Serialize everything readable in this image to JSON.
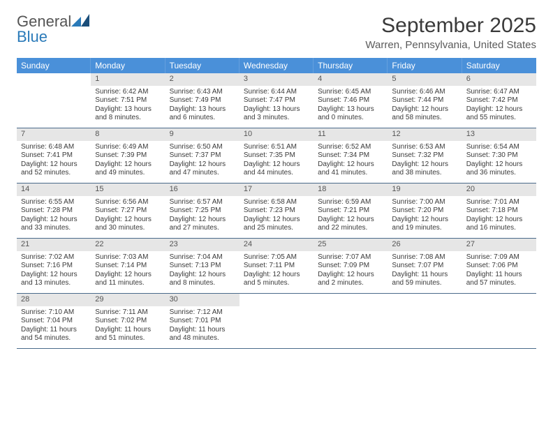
{
  "brand": {
    "name_a": "General",
    "name_b": "Blue"
  },
  "title": "September 2025",
  "location": "Warren, Pennsylvania, United States",
  "colors": {
    "header_bg": "#4a90d9",
    "date_bar_bg": "#e6e6e6",
    "row_border": "#4a6a8a",
    "brand_blue": "#2a7ab9",
    "text": "#3a3a3a"
  },
  "fonts": {
    "title_size": 30,
    "location_size": 15,
    "dow_size": 12,
    "cell_size": 10
  },
  "days_of_week": [
    "Sunday",
    "Monday",
    "Tuesday",
    "Wednesday",
    "Thursday",
    "Friday",
    "Saturday"
  ],
  "weeks": [
    [
      {
        "date": "",
        "sunrise": "",
        "sunset": "",
        "daylight": ""
      },
      {
        "date": "1",
        "sunrise": "Sunrise: 6:42 AM",
        "sunset": "Sunset: 7:51 PM",
        "daylight": "Daylight: 13 hours and 8 minutes."
      },
      {
        "date": "2",
        "sunrise": "Sunrise: 6:43 AM",
        "sunset": "Sunset: 7:49 PM",
        "daylight": "Daylight: 13 hours and 6 minutes."
      },
      {
        "date": "3",
        "sunrise": "Sunrise: 6:44 AM",
        "sunset": "Sunset: 7:47 PM",
        "daylight": "Daylight: 13 hours and 3 minutes."
      },
      {
        "date": "4",
        "sunrise": "Sunrise: 6:45 AM",
        "sunset": "Sunset: 7:46 PM",
        "daylight": "Daylight: 13 hours and 0 minutes."
      },
      {
        "date": "5",
        "sunrise": "Sunrise: 6:46 AM",
        "sunset": "Sunset: 7:44 PM",
        "daylight": "Daylight: 12 hours and 58 minutes."
      },
      {
        "date": "6",
        "sunrise": "Sunrise: 6:47 AM",
        "sunset": "Sunset: 7:42 PM",
        "daylight": "Daylight: 12 hours and 55 minutes."
      }
    ],
    [
      {
        "date": "7",
        "sunrise": "Sunrise: 6:48 AM",
        "sunset": "Sunset: 7:41 PM",
        "daylight": "Daylight: 12 hours and 52 minutes."
      },
      {
        "date": "8",
        "sunrise": "Sunrise: 6:49 AM",
        "sunset": "Sunset: 7:39 PM",
        "daylight": "Daylight: 12 hours and 49 minutes."
      },
      {
        "date": "9",
        "sunrise": "Sunrise: 6:50 AM",
        "sunset": "Sunset: 7:37 PM",
        "daylight": "Daylight: 12 hours and 47 minutes."
      },
      {
        "date": "10",
        "sunrise": "Sunrise: 6:51 AM",
        "sunset": "Sunset: 7:35 PM",
        "daylight": "Daylight: 12 hours and 44 minutes."
      },
      {
        "date": "11",
        "sunrise": "Sunrise: 6:52 AM",
        "sunset": "Sunset: 7:34 PM",
        "daylight": "Daylight: 12 hours and 41 minutes."
      },
      {
        "date": "12",
        "sunrise": "Sunrise: 6:53 AM",
        "sunset": "Sunset: 7:32 PM",
        "daylight": "Daylight: 12 hours and 38 minutes."
      },
      {
        "date": "13",
        "sunrise": "Sunrise: 6:54 AM",
        "sunset": "Sunset: 7:30 PM",
        "daylight": "Daylight: 12 hours and 36 minutes."
      }
    ],
    [
      {
        "date": "14",
        "sunrise": "Sunrise: 6:55 AM",
        "sunset": "Sunset: 7:28 PM",
        "daylight": "Daylight: 12 hours and 33 minutes."
      },
      {
        "date": "15",
        "sunrise": "Sunrise: 6:56 AM",
        "sunset": "Sunset: 7:27 PM",
        "daylight": "Daylight: 12 hours and 30 minutes."
      },
      {
        "date": "16",
        "sunrise": "Sunrise: 6:57 AM",
        "sunset": "Sunset: 7:25 PM",
        "daylight": "Daylight: 12 hours and 27 minutes."
      },
      {
        "date": "17",
        "sunrise": "Sunrise: 6:58 AM",
        "sunset": "Sunset: 7:23 PM",
        "daylight": "Daylight: 12 hours and 25 minutes."
      },
      {
        "date": "18",
        "sunrise": "Sunrise: 6:59 AM",
        "sunset": "Sunset: 7:21 PM",
        "daylight": "Daylight: 12 hours and 22 minutes."
      },
      {
        "date": "19",
        "sunrise": "Sunrise: 7:00 AM",
        "sunset": "Sunset: 7:20 PM",
        "daylight": "Daylight: 12 hours and 19 minutes."
      },
      {
        "date": "20",
        "sunrise": "Sunrise: 7:01 AM",
        "sunset": "Sunset: 7:18 PM",
        "daylight": "Daylight: 12 hours and 16 minutes."
      }
    ],
    [
      {
        "date": "21",
        "sunrise": "Sunrise: 7:02 AM",
        "sunset": "Sunset: 7:16 PM",
        "daylight": "Daylight: 12 hours and 13 minutes."
      },
      {
        "date": "22",
        "sunrise": "Sunrise: 7:03 AM",
        "sunset": "Sunset: 7:14 PM",
        "daylight": "Daylight: 12 hours and 11 minutes."
      },
      {
        "date": "23",
        "sunrise": "Sunrise: 7:04 AM",
        "sunset": "Sunset: 7:13 PM",
        "daylight": "Daylight: 12 hours and 8 minutes."
      },
      {
        "date": "24",
        "sunrise": "Sunrise: 7:05 AM",
        "sunset": "Sunset: 7:11 PM",
        "daylight": "Daylight: 12 hours and 5 minutes."
      },
      {
        "date": "25",
        "sunrise": "Sunrise: 7:07 AM",
        "sunset": "Sunset: 7:09 PM",
        "daylight": "Daylight: 12 hours and 2 minutes."
      },
      {
        "date": "26",
        "sunrise": "Sunrise: 7:08 AM",
        "sunset": "Sunset: 7:07 PM",
        "daylight": "Daylight: 11 hours and 59 minutes."
      },
      {
        "date": "27",
        "sunrise": "Sunrise: 7:09 AM",
        "sunset": "Sunset: 7:06 PM",
        "daylight": "Daylight: 11 hours and 57 minutes."
      }
    ],
    [
      {
        "date": "28",
        "sunrise": "Sunrise: 7:10 AM",
        "sunset": "Sunset: 7:04 PM",
        "daylight": "Daylight: 11 hours and 54 minutes."
      },
      {
        "date": "29",
        "sunrise": "Sunrise: 7:11 AM",
        "sunset": "Sunset: 7:02 PM",
        "daylight": "Daylight: 11 hours and 51 minutes."
      },
      {
        "date": "30",
        "sunrise": "Sunrise: 7:12 AM",
        "sunset": "Sunset: 7:01 PM",
        "daylight": "Daylight: 11 hours and 48 minutes."
      },
      {
        "date": "",
        "sunrise": "",
        "sunset": "",
        "daylight": ""
      },
      {
        "date": "",
        "sunrise": "",
        "sunset": "",
        "daylight": ""
      },
      {
        "date": "",
        "sunrise": "",
        "sunset": "",
        "daylight": ""
      },
      {
        "date": "",
        "sunrise": "",
        "sunset": "",
        "daylight": ""
      }
    ]
  ]
}
